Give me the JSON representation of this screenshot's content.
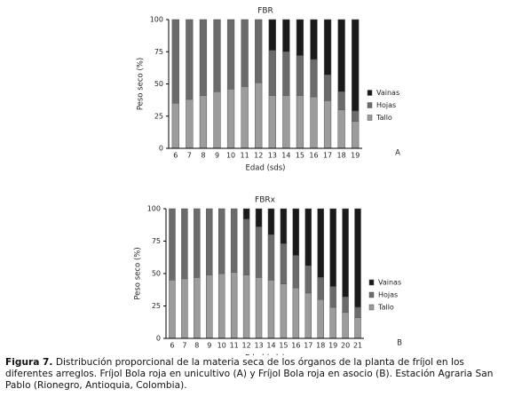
{
  "chart_data": [
    {
      "type": "stacked_bar",
      "title": "FBR",
      "panel": "A",
      "y_label": "Peso seco (%)",
      "x_label": "Edad (sds)",
      "categories": [
        "6",
        "7",
        "8",
        "9",
        "10",
        "11",
        "12",
        "13",
        "14",
        "15",
        "16",
        "17",
        "18",
        "19"
      ],
      "series": [
        {
          "name": "Vainas",
          "color": "#1a1a1a",
          "values": [
            0,
            0,
            0,
            0,
            0,
            0,
            0,
            24,
            25,
            28,
            31,
            43,
            56,
            71
          ]
        },
        {
          "name": "Hojas",
          "color": "#6b6b6b",
          "values": [
            65,
            62,
            59,
            56,
            54,
            52,
            49,
            35,
            34,
            31,
            29,
            20,
            14,
            8
          ]
        },
        {
          "name": "Tallo",
          "color": "#9c9c9c",
          "values": [
            35,
            38,
            41,
            44,
            46,
            48,
            51,
            41,
            41,
            41,
            40,
            37,
            30,
            21
          ]
        }
      ],
      "ylim": [
        0,
        100
      ],
      "yticks": [
        0,
        25,
        50,
        75,
        100
      ],
      "legend": "right"
    },
    {
      "type": "stacked_bar",
      "title": "FBRx",
      "panel": "B",
      "y_label": "Peso seco (%)",
      "x_label": "Edad (sds)",
      "categories": [
        "6",
        "7",
        "8",
        "9",
        "10",
        "11",
        "12",
        "13",
        "14",
        "15",
        "16",
        "17",
        "18",
        "19",
        "20",
        "21"
      ],
      "series": [
        {
          "name": "Vainas",
          "color": "#1a1a1a",
          "values": [
            0,
            0,
            0,
            0,
            0,
            0,
            8,
            14,
            20,
            27,
            36,
            44,
            53,
            60,
            68,
            76
          ]
        },
        {
          "name": "Hojas",
          "color": "#6b6b6b",
          "values": [
            55,
            54,
            53,
            51,
            50,
            49,
            43,
            39,
            35,
            31,
            25,
            21,
            17,
            16,
            12,
            8
          ]
        },
        {
          "name": "Tallo",
          "color": "#9c9c9c",
          "values": [
            45,
            46,
            47,
            49,
            50,
            51,
            49,
            47,
            45,
            42,
            39,
            35,
            30,
            24,
            20,
            16
          ]
        }
      ],
      "ylim": [
        0,
        100
      ],
      "yticks": [
        0,
        25,
        50,
        75,
        100
      ],
      "legend": "right"
    }
  ],
  "caption": {
    "label": "Figura 7.",
    "text": "Distribución proporcional de la materia seca de los órganos de la planta de fríjol en los diferentes arreglos. Fríjol Bola roja en unicultivo (A) y  Fríjol Bola roja en asocio (B).  Estación Agraria San Pablo (Rionegro, Antioquia, Colombia)."
  }
}
